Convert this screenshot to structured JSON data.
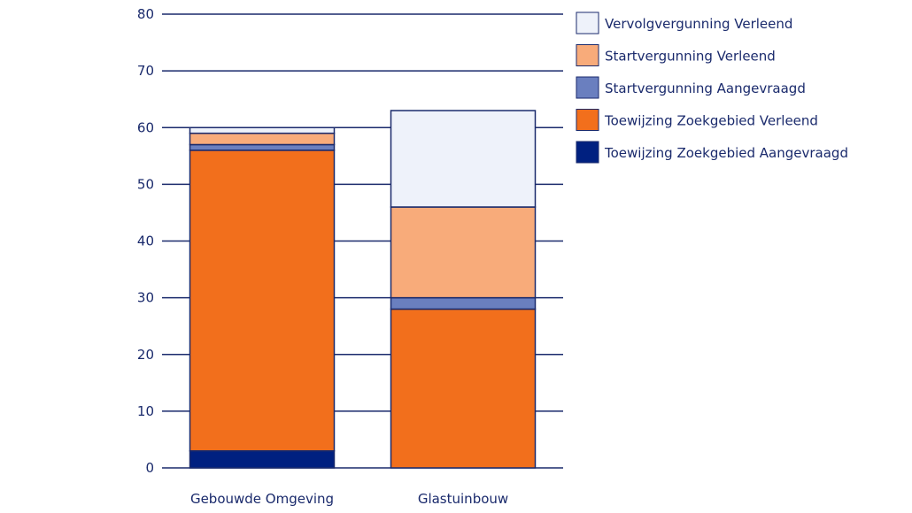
{
  "chart_data": {
    "type": "bar",
    "stacked": true,
    "categories": [
      "Gebouwde Omgeving",
      "Glastuinbouw"
    ],
    "series": [
      {
        "name": "Toewijzing Zoekgebied Aangevraagd",
        "values": [
          3,
          0
        ],
        "color": "#002080"
      },
      {
        "name": "Toewijzing Zoekgebied Verleend",
        "values": [
          53,
          28
        ],
        "color": "#f26f1c"
      },
      {
        "name": "Startvergunning Aangevraagd",
        "values": [
          1,
          2
        ],
        "color": "#6a7fbf"
      },
      {
        "name": "Startvergunning Verleend",
        "values": [
          2,
          16
        ],
        "color": "#f8ab7a"
      },
      {
        "name": "Vervolgvergunning Verleend",
        "values": [
          1,
          17
        ],
        "color": "#eef2fa"
      }
    ],
    "ylim": [
      0,
      80
    ],
    "yticks": [
      0,
      10,
      20,
      30,
      40,
      50,
      60,
      70,
      80
    ],
    "grid": true,
    "legend_position": "right",
    "title": "",
    "xlabel": "",
    "ylabel": "",
    "colors": {
      "axis": "#1a2a6c",
      "grid": "#1a2a6c",
      "bar_border": "#1a2a6c"
    }
  }
}
